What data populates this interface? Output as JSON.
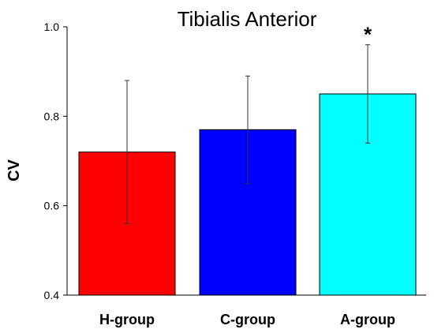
{
  "chart_data": {
    "type": "bar",
    "title": "Tibialis Anterior",
    "xlabel": "",
    "ylabel": "CV",
    "ylim": [
      0.4,
      1.0
    ],
    "yticks": [
      0.4,
      0.6,
      0.8,
      1.0
    ],
    "ytick_labels": [
      "0.4",
      "0.6",
      "0.8",
      "1.0"
    ],
    "categories": [
      "H-group",
      "C-group",
      "A-group"
    ],
    "values": [
      0.72,
      0.77,
      0.85
    ],
    "error_low": [
      0.56,
      0.65,
      0.74
    ],
    "error_high": [
      0.88,
      0.89,
      0.96
    ],
    "colors": [
      "#ff0000",
      "#0000ff",
      "#00ffff"
    ],
    "annotations": [
      "",
      "",
      "*"
    ],
    "grid": false
  }
}
